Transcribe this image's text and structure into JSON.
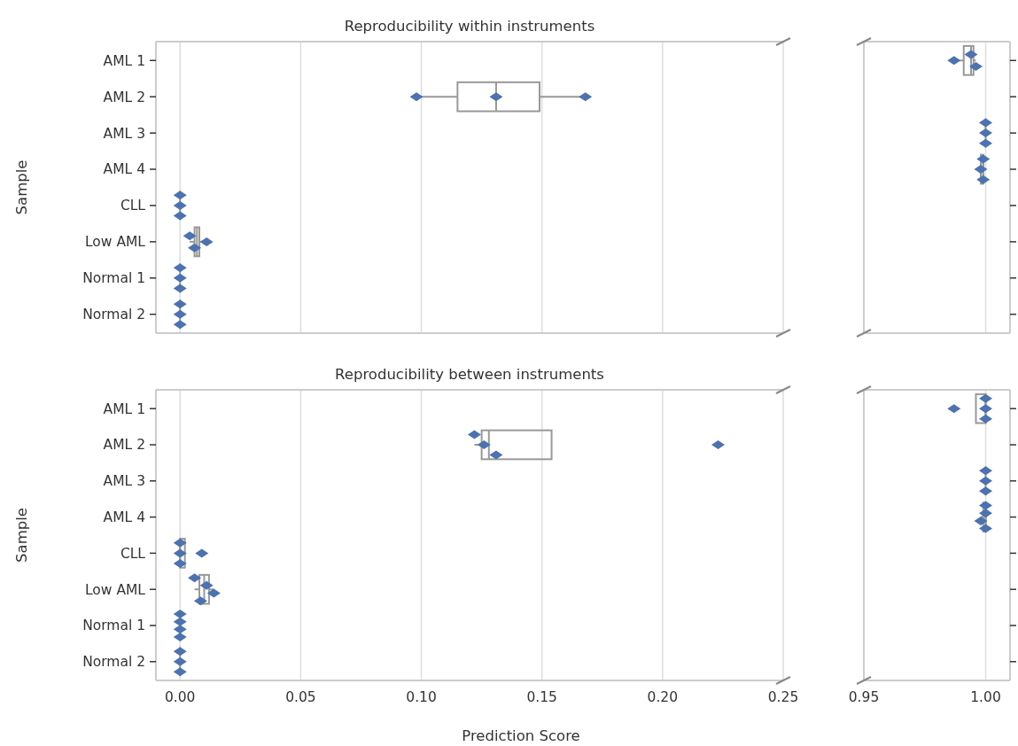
{
  "chart_data": [
    {
      "type": "box",
      "title": "Reproducibility within instruments",
      "ylabel": "Sample",
      "orientation": "horizontal",
      "categories": [
        "AML 1",
        "AML 2",
        "AML 3",
        "AML 4",
        "CLL",
        "Low AML",
        "Normal 1",
        "Normal 2"
      ],
      "boxes": [
        null,
        {
          "low": 0.098,
          "q1": 0.115,
          "median": 0.131,
          "q3": 0.149,
          "high": 0.168
        },
        null,
        null,
        {
          "low": 0,
          "q1": 0,
          "median": 0,
          "q3": 0,
          "high": 0
        },
        {
          "low": 0.004,
          "q1": 0.006,
          "median": 0.007,
          "q3": 0.008,
          "high": 0.011
        },
        {
          "low": 0,
          "q1": 0,
          "median": 0,
          "q3": 0,
          "high": 0
        },
        {
          "low": 0,
          "q1": 0,
          "median": 0,
          "q3": 0,
          "high": 0
        }
      ],
      "series": [
        {
          "type": "scatter",
          "color": "#4c72b0",
          "values": [
            null,
            0.098,
            null,
            null,
            0,
            0.004,
            0,
            0
          ]
        },
        {
          "type": "scatter",
          "color": "#4c72b0",
          "values": [
            null,
            0.131,
            null,
            null,
            0,
            0.011,
            0,
            0
          ]
        },
        {
          "type": "scatter",
          "color": "#4c72b0",
          "values": [
            null,
            0.168,
            null,
            null,
            0,
            0.006,
            0,
            0
          ]
        }
      ],
      "xlim": [
        -0.01,
        0.25
      ],
      "xticks": [
        0,
        0.05,
        0.1,
        0.15,
        0.2,
        0.25
      ],
      "grid": "x",
      "marker": "diamond",
      "tick_labels": "y"
    },
    {
      "type": "box",
      "orientation": "horizontal",
      "categories": [
        null,
        null,
        null,
        null,
        null,
        null,
        null,
        null
      ],
      "boxes": [
        {
          "low": 0.987,
          "q1": 0.991,
          "median": 0.994,
          "q3": 0.995,
          "high": 0.996
        },
        null,
        {
          "low": 1,
          "q1": 1,
          "median": 1,
          "q3": 1,
          "high": 1
        },
        {
          "low": 0.998,
          "q1": 0.998,
          "median": 0.999,
          "q3": 0.999,
          "high": 0.999
        },
        null,
        null,
        null,
        null
      ],
      "series": [
        {
          "type": "scatter",
          "color": "#4c72b0",
          "values": [
            0.987,
            null,
            1,
            0.999,
            null,
            null,
            null,
            null
          ]
        },
        {
          "type": "scatter",
          "color": "#4c72b0",
          "values": [
            0.994,
            null,
            1,
            0.998,
            null,
            null,
            null,
            null
          ]
        },
        {
          "type": "scatter",
          "color": "#4c72b0",
          "values": [
            0.996,
            null,
            1,
            0.999,
            null,
            null,
            null,
            null
          ]
        }
      ],
      "xlim": [
        0.95,
        1.01
      ],
      "xticks": [
        0.95,
        1
      ],
      "grid": "x",
      "marker": "diamond",
      "tick_labels": false
    },
    {
      "type": "box",
      "title": "Reproducibility between instruments",
      "xlabel": "Prediction Score",
      "ylabel": "Sample",
      "orientation": "horizontal",
      "categories": [
        "AML 1",
        "AML 2",
        "AML 3",
        "AML 4",
        "CLL",
        "Low AML",
        "Normal 1",
        "Normal 2"
      ],
      "boxes": [
        null,
        {
          "low": 0.122,
          "q1": 0.125,
          "median": 0.128,
          "q3": 0.154,
          "high": 0.154
        },
        null,
        null,
        {
          "low": 0,
          "q1": 0,
          "median": 0,
          "q3": 0.002,
          "high": 0
        },
        {
          "low": 0.006,
          "q1": 0.008,
          "median": 0.01,
          "q3": 0.012,
          "high": 0.014
        },
        {
          "low": 0,
          "q1": 0,
          "median": 0,
          "q3": 0,
          "high": 0
        },
        {
          "low": 0,
          "q1": 0,
          "median": 0,
          "q3": 0,
          "high": 0
        }
      ],
      "series": [
        {
          "type": "scatter",
          "color": "#4c72b0",
          "values": [
            null,
            0.122,
            null,
            null,
            0,
            0.006,
            0,
            0
          ]
        },
        {
          "type": "scatter",
          "color": "#4c72b0",
          "values": [
            null,
            0.126,
            null,
            null,
            0,
            0.011,
            0,
            0
          ]
        },
        {
          "type": "scatter",
          "color": "#4c72b0",
          "values": [
            null,
            0.131,
            null,
            null,
            0.009,
            0.014,
            0,
            0
          ]
        },
        {
          "type": "scatter",
          "color": "#4c72b0",
          "values": [
            null,
            0.223,
            null,
            null,
            0,
            0.0085,
            0,
            null
          ]
        }
      ],
      "xlim": [
        -0.01,
        0.25
      ],
      "xticks": [
        {
          "value": 0,
          "label": "0.00"
        },
        {
          "value": 0.05,
          "label": "0.05"
        },
        {
          "value": 0.1,
          "label": "0.10"
        },
        {
          "value": 0.15,
          "label": "0.15"
        },
        {
          "value": 0.2,
          "label": "0.20"
        },
        {
          "value": 0.25,
          "label": "0.25"
        }
      ],
      "grid": "x",
      "marker": "diamond"
    },
    {
      "type": "box",
      "orientation": "horizontal",
      "categories": [
        null,
        null,
        null,
        null,
        null,
        null,
        null,
        null
      ],
      "boxes": [
        {
          "low": 0.996,
          "q1": 0.996,
          "median": 1,
          "q3": 1,
          "high": 1
        },
        null,
        {
          "low": 1,
          "q1": 1,
          "median": 1,
          "q3": 1,
          "high": 1
        },
        {
          "low": 0.998,
          "q1": 0.999,
          "median": 1,
          "q3": 1,
          "high": 1
        },
        null,
        null,
        null,
        null
      ],
      "series": [
        {
          "type": "scatter",
          "color": "#4c72b0",
          "values": [
            1,
            null,
            1,
            1,
            null,
            null,
            null,
            null
          ]
        },
        {
          "type": "scatter",
          "color": "#4c72b0",
          "values": [
            0.987,
            null,
            1,
            1,
            null,
            null,
            null,
            null
          ]
        },
        {
          "type": "scatter",
          "color": "#4c72b0",
          "values": [
            1,
            null,
            1,
            0.998,
            null,
            null,
            null,
            null
          ]
        },
        {
          "type": "scatter",
          "color": "#4c72b0",
          "values": [
            1,
            null,
            null,
            1,
            null,
            null,
            null,
            null
          ]
        }
      ],
      "xlim": [
        0.95,
        1.01
      ],
      "xticks": [
        {
          "value": 0.95,
          "label": "0.95"
        },
        {
          "value": 1,
          "label": "1.00"
        }
      ],
      "grid": "x",
      "marker": "diamond",
      "tick_labels": "x"
    }
  ]
}
